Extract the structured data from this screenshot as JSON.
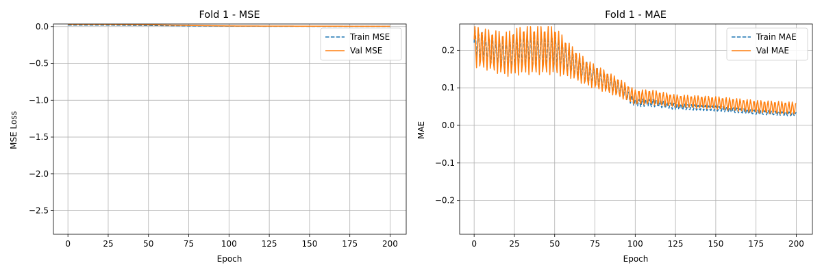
{
  "chart_data": [
    {
      "type": "line",
      "title": "Fold 1 - MSE",
      "xlabel": "Epoch",
      "ylabel": "MSE Loss",
      "xlim": [
        -9,
        210
      ],
      "ylim": [
        -2.82,
        0.035
      ],
      "xticks": [
        0,
        25,
        50,
        75,
        100,
        125,
        150,
        175,
        200
      ],
      "yticks": [
        0.0,
        -0.5,
        -1.0,
        -1.5,
        -2.0,
        -2.5
      ],
      "ytick_labels": [
        "0.0",
        "−0.5",
        "−1.0",
        "−1.5",
        "−2.0",
        "−2.5"
      ],
      "grid": true,
      "legend_position": "upper right",
      "series": [
        {
          "name": "Train MSE",
          "style": "dashed",
          "color": "#1f77b4",
          "x": [
            0,
            25,
            50,
            75,
            100,
            125,
            150,
            175,
            200
          ],
          "values": [
            0.02,
            0.02,
            0.015,
            0.01,
            0.005,
            0.004,
            0.003,
            0.002,
            0.002
          ]
        },
        {
          "name": "Val MSE",
          "style": "solid",
          "color": "#ff7f0e",
          "x": [
            0,
            25,
            50,
            75,
            100,
            125,
            150,
            175,
            200
          ],
          "values": [
            0.03,
            0.03,
            0.025,
            0.015,
            0.008,
            0.006,
            0.005,
            0.004,
            0.004
          ]
        }
      ]
    },
    {
      "type": "line",
      "title": "Fold 1 - MAE",
      "xlabel": "Epoch",
      "ylabel": "MAE",
      "xlim": [
        -9,
        210
      ],
      "ylim": [
        -0.29,
        0.27
      ],
      "xticks": [
        0,
        25,
        50,
        75,
        100,
        125,
        150,
        175,
        200
      ],
      "yticks": [
        0.2,
        0.1,
        0.0,
        -0.1,
        -0.2
      ],
      "ytick_labels": [
        "0.2",
        "0.1",
        "0.0",
        "−0.1",
        "−0.2"
      ],
      "grid": true,
      "legend_position": "upper right",
      "series": [
        {
          "name": "Train MAE",
          "style": "dashed",
          "color": "#1f77b4",
          "x": [
            0,
            10,
            20,
            30,
            40,
            50,
            60,
            70,
            80,
            90,
            100,
            110,
            125,
            150,
            175,
            200
          ],
          "values": [
            0.22,
            0.2,
            0.19,
            0.2,
            0.2,
            0.2,
            0.17,
            0.14,
            0.12,
            0.1,
            0.06,
            0.06,
            0.05,
            0.045,
            0.035,
            0.03
          ],
          "amplitude": [
            0.04,
            0.04,
            0.04,
            0.045,
            0.045,
            0.045,
            0.035,
            0.03,
            0.025,
            0.02,
            0.01,
            0.01,
            0.008,
            0.007,
            0.006,
            0.005
          ]
        },
        {
          "name": "Val MAE",
          "style": "solid",
          "color": "#ff7f0e",
          "x": [
            0,
            10,
            20,
            30,
            40,
            50,
            60,
            70,
            80,
            90,
            100,
            110,
            125,
            150,
            175,
            200
          ],
          "values": [
            0.21,
            0.2,
            0.19,
            0.2,
            0.2,
            0.2,
            0.17,
            0.14,
            0.12,
            0.1,
            0.075,
            0.075,
            0.065,
            0.06,
            0.05,
            0.045
          ],
          "amplitude": [
            0.055,
            0.055,
            0.06,
            0.065,
            0.065,
            0.065,
            0.045,
            0.035,
            0.03,
            0.025,
            0.02,
            0.02,
            0.017,
            0.017,
            0.017,
            0.017
          ]
        }
      ]
    }
  ]
}
